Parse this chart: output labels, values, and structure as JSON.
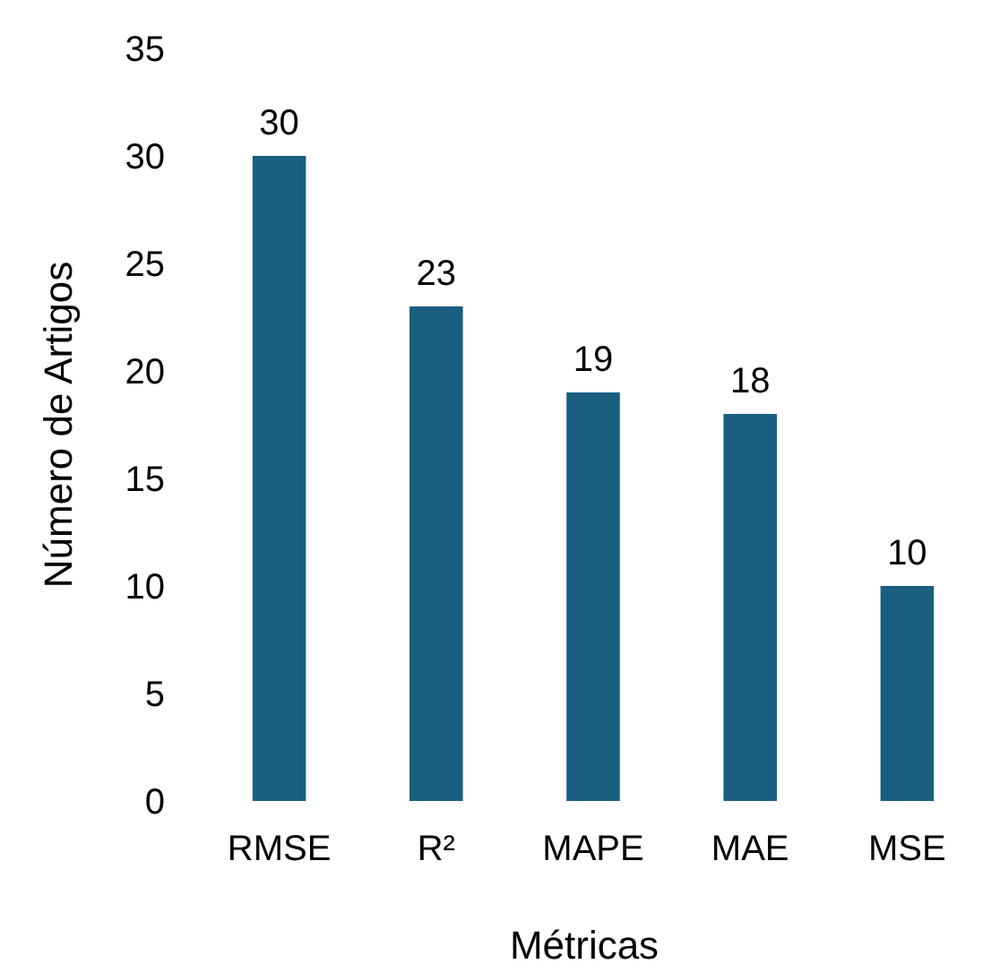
{
  "chart_data": {
    "type": "bar",
    "xlabel": "Métricas",
    "ylabel": "Número de Artigos",
    "categories": [
      "RMSE",
      "R²",
      "MAPE",
      "MAE",
      "MSE"
    ],
    "values": [
      30,
      23,
      19,
      18,
      10
    ],
    "color": "#1a5f80",
    "ylim": [
      0,
      35
    ],
    "yticks": [
      0,
      5,
      10,
      15,
      20,
      25,
      30,
      35
    ],
    "data_labels": true,
    "grid": false
  }
}
